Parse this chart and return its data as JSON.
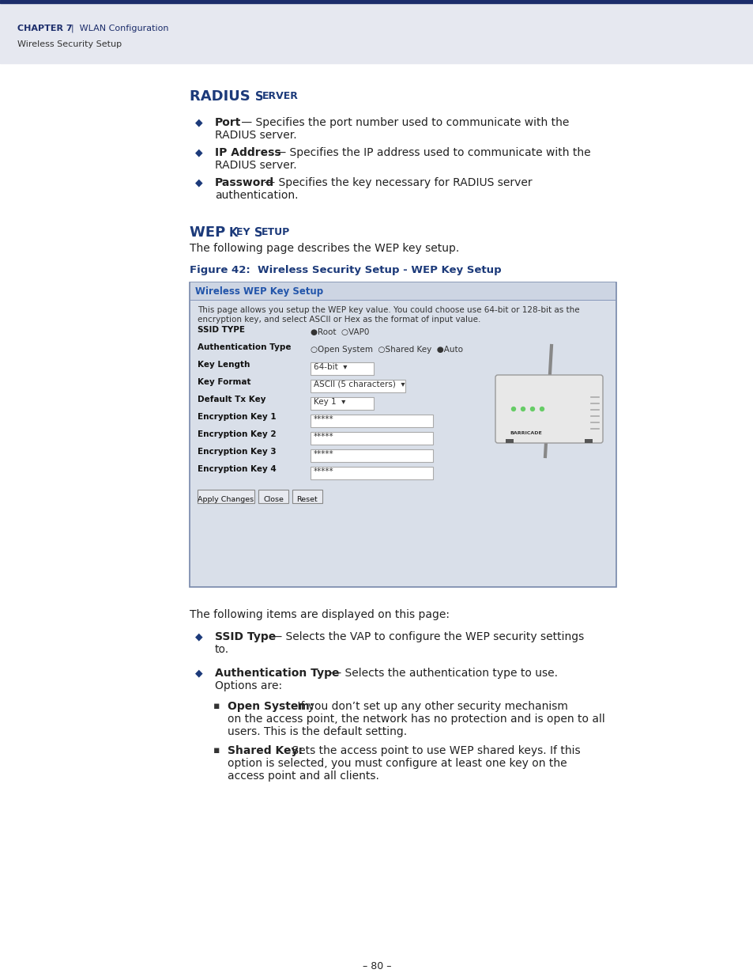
{
  "bg_color": "#ffffff",
  "header_bar_color": "#1c2d6b",
  "header_bg_color": "#e6e8f0",
  "chapter_text_bold": "CHAPTER 7",
  "chapter_text_rest": "  |  WLAN Configuration",
  "subheader_text": "Wireless Security Setup",
  "header_text_color": "#1c2d6b",
  "subheader_text_color": "#333333",
  "section_title_color": "#1c3a7a",
  "bullet_color": "#1c3a7a",
  "body_text_color": "#222222",
  "figure_caption_color": "#1c3a7a",
  "radius_items": [
    {
      "bold": "Port",
      "rest": " — Specifies the port number used to communicate with the",
      "line2": "RADIUS server."
    },
    {
      "bold": "IP Address",
      "rest": " — Specifies the IP address used to communicate with the",
      "line2": "RADIUS server."
    },
    {
      "bold": "Password",
      "rest": " — Specifies the key necessary for RADIUS server",
      "line2": "authentication."
    }
  ],
  "wep_intro": "The following page describes the WEP key setup.",
  "figure_caption": "Figure 42:  Wireless Security Setup - WEP Key Setup",
  "screenshot_title": "Wireless WEP Key Setup",
  "screenshot_desc1": "This page allows you setup the WEP key value. You could choose use 64-bit or 128-bit as the",
  "screenshot_desc2": "encryption key, and select ASCII or Hex as the format of input value.",
  "screenshot_bg": "#d9dfe9",
  "screenshot_border": "#8899aa",
  "screenshot_title_color": "#2255aa",
  "screenshot_title_line_color": "#99aabb",
  "form_fields": [
    {
      "label": "SSID TYPE",
      "value": "●Root  ○VAP0",
      "type": "radio"
    },
    {
      "label": "Authentication Type",
      "value": "○Open System  ○Shared Key  ●Auto",
      "type": "radio"
    },
    {
      "label": "Key Length",
      "value": "64-bit  ▾",
      "type": "dropdown"
    },
    {
      "label": "Key Format",
      "value": "ASCII (5 characters)  ▾",
      "type": "dropdown"
    },
    {
      "label": "Default Tx Key",
      "value": "Key 1  ▾",
      "type": "dropdown"
    },
    {
      "label": "Encryption Key 1",
      "value": "*****",
      "type": "input"
    },
    {
      "label": "Encryption Key 2",
      "value": "*****",
      "type": "input"
    },
    {
      "label": "Encryption Key 3",
      "value": "*****",
      "type": "input"
    },
    {
      "label": "Encryption Key 4",
      "value": "*****",
      "type": "input"
    }
  ],
  "buttons": [
    "Apply Changes",
    "Close",
    "Reset"
  ],
  "bottom_intro": "The following items are displayed on this page:",
  "bottom_items": [
    {
      "bold": "SSID Type",
      "rest": " — Selects the VAP to configure the WEP security settings",
      "line2": "to."
    },
    {
      "bold": "Authentication Type",
      "rest": " — Selects the authentication type to use.",
      "line2": "Options are:"
    }
  ],
  "sub_items": [
    {
      "bold": "Open System:",
      "rest": " If you don’t set up any other security mechanism",
      "lines": [
        "on the access point, the network has no protection and is open to all",
        "users. This is the default setting."
      ]
    },
    {
      "bold": "Shared Key:",
      "rest": " Sets the access point to use WEP shared keys. If this",
      "lines": [
        "option is selected, you must configure at least one key on the",
        "access point and all clients."
      ]
    }
  ],
  "page_number": "– 80 –"
}
